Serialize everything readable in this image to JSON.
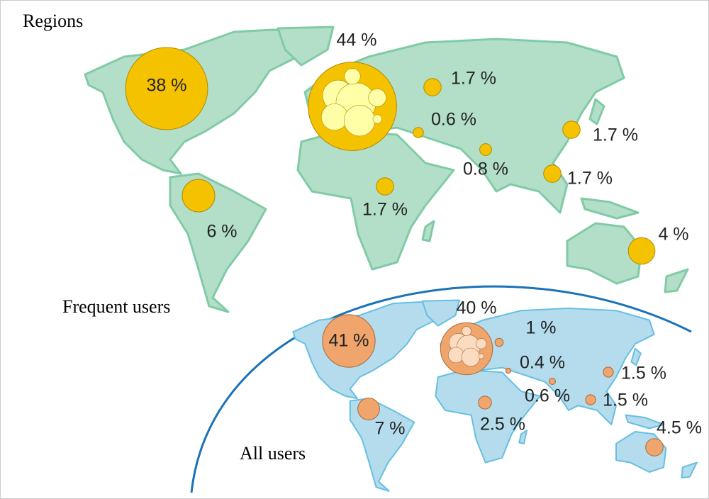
{
  "title": "Regions",
  "panels": [
    {
      "label": "Frequent users",
      "bubbles": [
        {
          "label": "38 %",
          "value": 38
        },
        {
          "label": "44 %",
          "value": 44
        },
        {
          "label": "1.7 %",
          "value": 1.7
        },
        {
          "label": "0.6 %",
          "value": 0.6
        },
        {
          "label": "1.7 %",
          "value": 1.7
        },
        {
          "label": "0.8 %",
          "value": 0.8
        },
        {
          "label": "1.7 %",
          "value": 1.7
        },
        {
          "label": "1.7 %",
          "value": 1.7
        },
        {
          "label": "6 %",
          "value": 6
        },
        {
          "label": "4 %",
          "value": 4
        }
      ]
    },
    {
      "label": "All users",
      "bubbles": [
        {
          "label": "41 %",
          "value": 41
        },
        {
          "label": "40 %",
          "value": 40
        },
        {
          "label": "1 %",
          "value": 1
        },
        {
          "label": "0.4 %",
          "value": 0.4
        },
        {
          "label": "0.6 %",
          "value": 0.6
        },
        {
          "label": "1.5 %",
          "value": 1.5
        },
        {
          "label": "1.5 %",
          "value": 1.5
        },
        {
          "label": "2.5 %",
          "value": 2.5
        },
        {
          "label": "7 %",
          "value": 7
        },
        {
          "label": "4.5 %",
          "value": 4.5
        }
      ]
    }
  ]
}
